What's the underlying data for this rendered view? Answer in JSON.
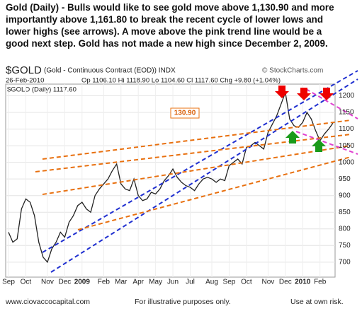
{
  "chart_data": {
    "type": "line",
    "title_lines": [
      "Gold (Daily) -  Bulls would like to see gold move above 1,130.90 and more",
      "importantly  above 1,161.80 to break the recent cycle of lower lows and",
      "lower highs (see arrows).   A move above the pink trend line would be a",
      "good next step.   Gold has not made a new high since December 2, 2009."
    ],
    "symbol": "$GOLD",
    "heading": "(Gold - Continuous Contract (EOD))  INDX",
    "watermark": "© StockCharts.com",
    "date": "26-Feb-2010",
    "ohlc": "Op 1106.10  Hi 1118.90  Lo 1104.60  Cl 1117.60  Chg +9.80 (+1.04%)",
    "annotation": "130.90",
    "footer": [
      "www.ciovaccocapital.com",
      "For illustrative purposes only.",
      "Use at own risk."
    ],
    "categories": [
      "Sep",
      null,
      null,
      null,
      "Oct",
      null,
      null,
      null,
      null,
      "Nov",
      null,
      null,
      null,
      "Dec",
      null,
      null,
      null,
      "2009",
      null,
      null,
      null,
      null,
      "Feb",
      null,
      null,
      null,
      "Mar",
      null,
      null,
      null,
      "Apr",
      null,
      null,
      null,
      "May",
      null,
      null,
      null,
      "Jun",
      null,
      null,
      null,
      "Jul",
      null,
      null,
      null,
      null,
      "Aug",
      null,
      null,
      null,
      "Sep",
      null,
      null,
      null,
      "Oct",
      null,
      null,
      null,
      null,
      "Nov",
      null,
      null,
      null,
      "Dec",
      null,
      null,
      null,
      "2010",
      null,
      null,
      null,
      "Feb",
      null,
      null,
      null
    ],
    "series": [
      {
        "name": "$GOLD (Daily) 1117.60",
        "color": "#222222",
        "values": [
          790,
          760,
          770,
          860,
          890,
          880,
          840,
          760,
          715,
          700,
          740,
          760,
          790,
          775,
          820,
          840,
          870,
          880,
          860,
          850,
          900,
          920,
          935,
          950,
          975,
          995,
          935,
          920,
          915,
          950,
          900,
          885,
          890,
          910,
          905,
          920,
          945,
          960,
          980,
          955,
          940,
          930,
          925,
          915,
          935,
          950,
          955,
          950,
          940,
          950,
          945,
          990,
          1000,
          1010,
          995,
          1045,
          1050,
          1060,
          1050,
          1040,
          1090,
          1115,
          1140,
          1175,
          1210,
          1130,
          1110,
          1105,
          1120,
          1150,
          1130,
          1095,
          1065,
          1085,
          1100,
          1118
        ]
      }
    ],
    "ylim": [
      655,
      1250
    ],
    "yticks": [
      700,
      750,
      800,
      850,
      900,
      950,
      1000,
      1050,
      1100,
      1150,
      1200
    ],
    "grid": true
  }
}
